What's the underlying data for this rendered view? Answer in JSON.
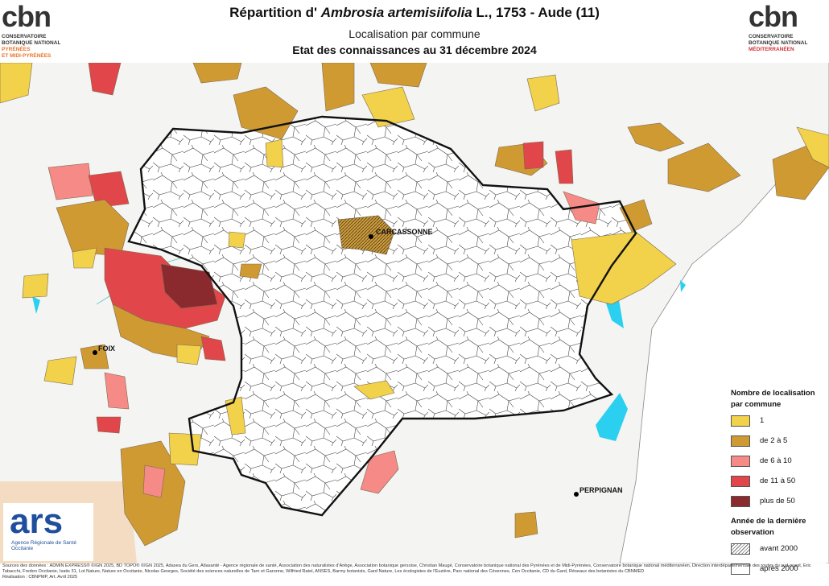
{
  "header": {
    "title_start": "Répartition d' ",
    "title_species": "Ambrosia artemisiifolia",
    "title_end": " L., 1753 - Aude (11)",
    "subtitle": "Localisation par commune",
    "date_line": "Etat des connaissances au 31 décembre 2024"
  },
  "logos": {
    "left": {
      "mark": "cbn",
      "line1": "CONSERVATOIRE",
      "line2": "BOTANIQUE NATIONAL",
      "line3": "PYRÉNÉES",
      "line4": "ET MIDI-PYRÉNÉES"
    },
    "right": {
      "mark": "cbn",
      "line1": "CONSERVATOIRE",
      "line2": "BOTANIQUE NATIONAL",
      "line3": "MÉDITERRANÉEN"
    },
    "ars": {
      "mark": "ars",
      "line1": "Agence Régionale de Santé",
      "line2": "Occitanie"
    }
  },
  "map": {
    "cities": [
      "CARCASSONNE",
      "FOIX",
      "PERPIGNAN"
    ]
  },
  "legend": {
    "title": "Nombre de localisation par commune",
    "classes": [
      "1",
      "de 2 à 5",
      "de 6 à 10",
      "de 11 à 50",
      "plus de 50"
    ],
    "year_title": "Année de la dernière observation",
    "years": [
      "avant 2000",
      "après 2000"
    ]
  },
  "sources": "Sources des données : ADMIN EXPRESS® ©IGN 2025, BD TOPO® ©IGN 2025, Adasea du Gers, Atlasanté - Agence régionale de santé, Association des naturalistes d'Ariège, Association botanique gersoise, Christian Maugé, Conservatoire botanique national des Pyrénées et de Midi-Pyrénées, Conservatoire botanique national méditerranéen, Direction interdépartementale des routes du sud-ouest, Eric Tabacchi, Fredon Occitanie, Isatis 31, Lot Nature, Nature en Occitanie, Nicolas Georges, Société des sciences naturelles de Tarn et Garonne, Wilfried Ratel, ANSES, Barmy botanists, Gard Nature, Les écologistes de l'Euzière, Parc national des Cévennes, Cen Occitanie, CD du Gard, Réseaux des botanistes du CBNMED",
  "credit": "Réalisation : CBNPMP, Art. Avril 2025"
}
